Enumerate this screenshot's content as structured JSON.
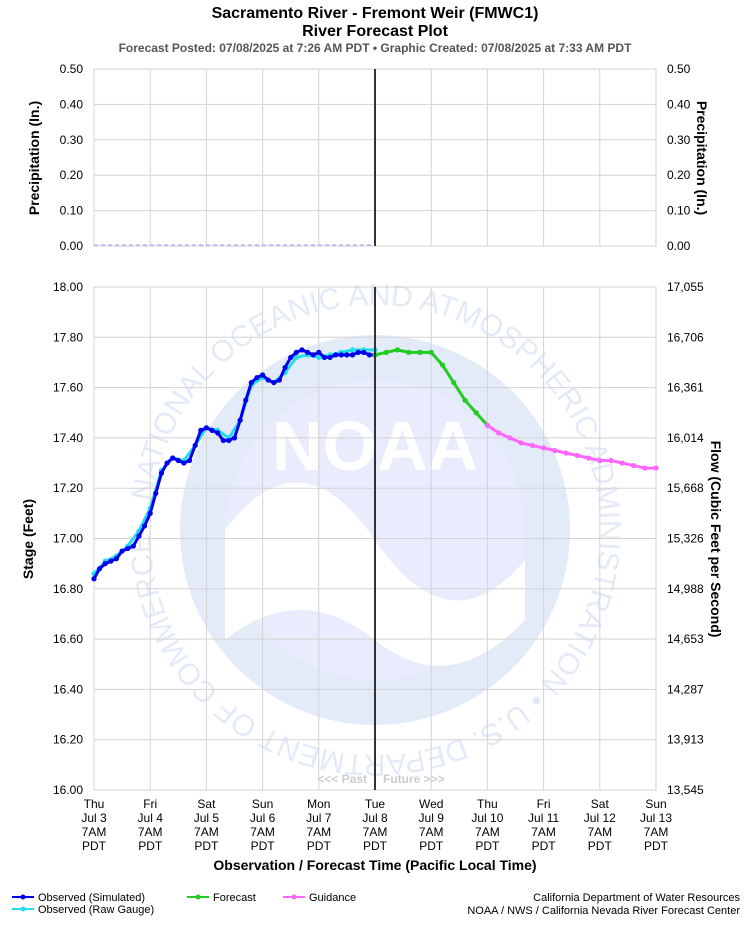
{
  "header": {
    "title_line1": "Sacramento River - Fremont Weir (FMWC1)",
    "title_line2": "River Forecast Plot",
    "subtitle": "Forecast Posted: 07/08/2025 at 7:26 AM PDT  •  Graphic Created: 07/08/2025 at 7:33 AM PDT"
  },
  "colors": {
    "observed_simulated": "#0000ee",
    "observed_raw": "#22ddee",
    "forecast": "#22cc22",
    "guidance": "#ff66ff",
    "now_line": "#333333",
    "grid": "#d3d3d3"
  },
  "chart_data": [
    {
      "type": "line",
      "name": "precipitation",
      "ylabel_left": "Precipitation (In.)",
      "ylabel_right": "Precipitation (In.)",
      "ylim": [
        0,
        0.5
      ],
      "yticks": [
        "0.00",
        "0.10",
        "0.20",
        "0.30",
        "0.40",
        "0.50"
      ],
      "yticks_right": [
        "0.00",
        "0.10",
        "0.20",
        "0.30",
        "0.40",
        "0.50"
      ],
      "grid": true,
      "series": [
        {
          "name": "Precipitation",
          "values": [
            0,
            0
          ]
        }
      ]
    },
    {
      "type": "line",
      "name": "stage",
      "xlabel": "Observation / Forecast Time (Pacific Local Time)",
      "ylabel_left": "Stage (Feet)",
      "ylabel_right": "Flow (Cubic Feet per Second)",
      "ylim": [
        16.0,
        18.0
      ],
      "yticks": [
        "16.00",
        "16.20",
        "16.40",
        "16.60",
        "16.80",
        "17.00",
        "17.20",
        "17.40",
        "17.60",
        "17.80",
        "18.00"
      ],
      "yticks_right": [
        "13,545",
        "13,913",
        "14,287",
        "14,653",
        "14,988",
        "15,326",
        "15,668",
        "16,014",
        "16,361",
        "16,706",
        "17,055"
      ],
      "x_unit": "days since Thu Jul 3 7AM PDT",
      "xlim": [
        0,
        10
      ],
      "now_x": 5,
      "past_label": "<<< Past",
      "future_label": "Future >>>",
      "grid": true,
      "series": [
        {
          "name": "Observed (Simulated)",
          "x": [
            0,
            0.1,
            0.2,
            0.3,
            0.4,
            0.5,
            0.6,
            0.7,
            0.8,
            0.9,
            1.0,
            1.1,
            1.2,
            1.3,
            1.4,
            1.5,
            1.6,
            1.7,
            1.8,
            1.9,
            2.0,
            2.1,
            2.2,
            2.3,
            2.4,
            2.5,
            2.6,
            2.7,
            2.8,
            2.9,
            3.0,
            3.1,
            3.2,
            3.3,
            3.4,
            3.5,
            3.6,
            3.7,
            3.8,
            3.9,
            4.0,
            4.1,
            4.2,
            4.3,
            4.4,
            4.5,
            4.6,
            4.7,
            4.8,
            4.9,
            5.0
          ],
          "values": [
            16.84,
            16.88,
            16.9,
            16.91,
            16.92,
            16.95,
            16.96,
            16.97,
            17.01,
            17.05,
            17.1,
            17.18,
            17.26,
            17.3,
            17.32,
            17.31,
            17.3,
            17.31,
            17.37,
            17.43,
            17.44,
            17.43,
            17.42,
            17.39,
            17.39,
            17.4,
            17.47,
            17.55,
            17.62,
            17.64,
            17.65,
            17.63,
            17.62,
            17.63,
            17.68,
            17.72,
            17.74,
            17.75,
            17.74,
            17.73,
            17.74,
            17.72,
            17.72,
            17.73,
            17.73,
            17.73,
            17.73,
            17.74,
            17.74,
            17.73,
            17.73
          ]
        },
        {
          "name": "Observed (Raw Gauge)",
          "x": [
            0,
            0.2,
            0.4,
            0.6,
            0.8,
            1.0,
            1.2,
            1.4,
            1.6,
            1.8,
            2.0,
            2.2,
            2.4,
            2.6,
            2.8,
            3.0,
            3.2,
            3.4,
            3.6,
            3.8,
            4.0,
            4.2,
            4.4,
            4.6,
            4.8,
            5.0
          ],
          "values": [
            16.86,
            16.91,
            16.93,
            16.97,
            17.03,
            17.12,
            17.27,
            17.32,
            17.31,
            17.37,
            17.44,
            17.43,
            17.4,
            17.47,
            17.61,
            17.64,
            17.62,
            17.66,
            17.72,
            17.73,
            17.72,
            17.73,
            17.74,
            17.75,
            17.75,
            17.75
          ]
        },
        {
          "name": "Forecast",
          "x": [
            5.0,
            5.2,
            5.4,
            5.6,
            5.8,
            6.0,
            6.2,
            6.4,
            6.6,
            6.8,
            7.0
          ],
          "values": [
            17.73,
            17.74,
            17.75,
            17.74,
            17.74,
            17.74,
            17.69,
            17.62,
            17.55,
            17.5,
            17.45
          ]
        },
        {
          "name": "Guidance",
          "x": [
            7.0,
            7.2,
            7.4,
            7.6,
            7.8,
            8.0,
            8.2,
            8.4,
            8.6,
            8.8,
            9.0,
            9.2,
            9.4,
            9.6,
            9.8,
            10.0
          ],
          "values": [
            17.45,
            17.42,
            17.4,
            17.38,
            17.37,
            17.36,
            17.35,
            17.34,
            17.33,
            17.32,
            17.31,
            17.31,
            17.3,
            17.29,
            17.28,
            17.28
          ]
        }
      ]
    }
  ],
  "x_ticks": [
    {
      "day": "Thu",
      "date": "Jul 3",
      "time": "7AM",
      "tz": "PDT"
    },
    {
      "day": "Fri",
      "date": "Jul 4",
      "time": "7AM",
      "tz": "PDT"
    },
    {
      "day": "Sat",
      "date": "Jul 5",
      "time": "7AM",
      "tz": "PDT"
    },
    {
      "day": "Sun",
      "date": "Jul 6",
      "time": "7AM",
      "tz": "PDT"
    },
    {
      "day": "Mon",
      "date": "Jul 7",
      "time": "7AM",
      "tz": "PDT"
    },
    {
      "day": "Tue",
      "date": "Jul 8",
      "time": "7AM",
      "tz": "PDT"
    },
    {
      "day": "Wed",
      "date": "Jul 9",
      "time": "7AM",
      "tz": "PDT"
    },
    {
      "day": "Thu",
      "date": "Jul 10",
      "time": "7AM",
      "tz": "PDT"
    },
    {
      "day": "Fri",
      "date": "Jul 11",
      "time": "7AM",
      "tz": "PDT"
    },
    {
      "day": "Sat",
      "date": "Jul 12",
      "time": "7AM",
      "tz": "PDT"
    },
    {
      "day": "Sun",
      "date": "Jul 13",
      "time": "7AM",
      "tz": "PDT"
    }
  ],
  "legend": {
    "items": [
      "Observed (Simulated)",
      "Observed (Raw Gauge)",
      "Forecast",
      "Guidance"
    ]
  },
  "footer": {
    "line1": "California Department of Water Resources",
    "line2": "NOAA / NWS / California Nevada River Forecast Center"
  },
  "watermark": {
    "logo_text": "NOAA",
    "ring_text": "NATIONAL OCEANIC AND ATMOSPHERIC ADMINISTRATION • U.S. DEPARTMENT OF COMMERCE"
  }
}
